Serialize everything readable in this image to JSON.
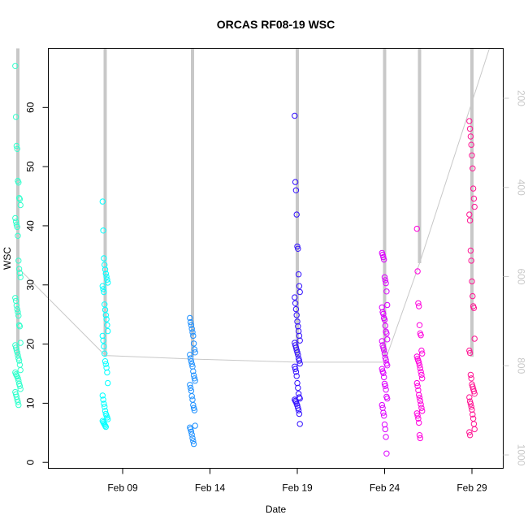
{
  "chart_data": {
    "type": "scatter",
    "title": "ORCAS RF08-19 WSC",
    "xlabel": "Date",
    "ylabel": "WSC",
    "x_ticks": [
      "Feb 09",
      "Feb 14",
      "Feb 19",
      "Feb 24",
      "Feb 29"
    ],
    "y_ticks": [
      0,
      10,
      20,
      30,
      40,
      50,
      60
    ],
    "ylim": [
      -1,
      70
    ],
    "right_axis": {
      "ticks": [
        200,
        400,
        600,
        800,
        1000
      ],
      "range": [
        88,
        1030
      ],
      "reversed": true,
      "color": "#c8c8c8"
    },
    "flights": [
      {
        "date": "2016-02-03",
        "color": "#33ffcc",
        "values": [
          67,
          58.4,
          53.5,
          53,
          47.6,
          47.3,
          44.7,
          44.5,
          43.5,
          41.3,
          40.7,
          40.2,
          39.8,
          38.3,
          34.1,
          32.7,
          32,
          31.3,
          27.8,
          27.3,
          26.5,
          25.9,
          25.4,
          24.8,
          23.2,
          23,
          20.2,
          19.8,
          19.4,
          19,
          18.6,
          18.1,
          17.6,
          17.2,
          16.5,
          15.6,
          15.2,
          14.9,
          14.7,
          14.5,
          14.2,
          13.8,
          13.3,
          12.9,
          12.4,
          11.9,
          11.5,
          11.1,
          10.6,
          10.2,
          9.7
        ]
      },
      {
        "date": "2016-02-08",
        "color": "#00ffff",
        "values": [
          44.1,
          39.2,
          34.5,
          33.4,
          32.6,
          31.9,
          31.4,
          30.9,
          30.4,
          29.8,
          29.3,
          28.8,
          26.7,
          25.8,
          24.9,
          24.2,
          23.2,
          22.2,
          21.4,
          20.6,
          19.6,
          18.4,
          17.1,
          16.6,
          16,
          15.2,
          13.4,
          11.3,
          10.6,
          9.9,
          9.4,
          8.7,
          8.2,
          7.9,
          7.6,
          7.3,
          7,
          6.8,
          6.6,
          6.4,
          6.2,
          6
        ]
      },
      {
        "date": "2016-02-13",
        "color": "#1e90ff",
        "values": [
          24.4,
          23.7,
          23.2,
          22.6,
          22,
          21.4,
          20.1,
          19.1,
          18.6,
          18.2,
          17.6,
          17.1,
          16.6,
          16.2,
          15.4,
          14.7,
          14.2,
          13.8,
          13.1,
          12.6,
          12.1,
          11.2,
          10.6,
          9.7,
          9.2,
          8.8,
          6.2,
          5.9,
          5.6,
          5.2,
          4.7,
          4.1,
          3.6,
          3.1
        ]
      },
      {
        "date": "2016-02-19",
        "color": "#3311ff",
        "values": [
          58.6,
          47.4,
          46,
          41.9,
          36.5,
          36.1,
          31.8,
          29.8,
          28.8,
          27.9,
          26.9,
          25.9,
          24.9,
          23.8,
          23,
          22.2,
          21.4,
          20.6,
          20.2,
          19.8,
          19.4,
          19,
          18.6,
          18.2,
          17.6,
          17.2,
          16.7,
          16.2,
          15.8,
          15.3,
          14.6,
          13.4,
          12.6,
          11.6,
          11,
          10.8,
          10.6,
          10.4,
          10.2,
          9.9,
          9.6,
          9.2,
          8.8,
          8.2,
          6.5
        ]
      },
      {
        "date": "2016-02-24",
        "color": "#dd00ff",
        "values": [
          35.4,
          35.1,
          34.7,
          34.3,
          31.3,
          30.8,
          30.3,
          28.9,
          26.6,
          26.2,
          25.4,
          25.1,
          24.4,
          24.1,
          23.1,
          22.1,
          21.8,
          20.8,
          20.5,
          19.8,
          19.4,
          19,
          18.4,
          17.7,
          17.3,
          16.7,
          16.4,
          15.8,
          15.4,
          15.1,
          14.4,
          13.3,
          12.9,
          12.3,
          11.1,
          10.8,
          9.7,
          9.2,
          8.4,
          7.9,
          6.4,
          5.6,
          4.3,
          1.5
        ]
      },
      {
        "date": "2016-02-26",
        "color": "#ff00dd",
        "values": [
          39.5,
          32.3,
          26.9,
          26.4,
          23.2,
          21.8,
          21.5,
          18.9,
          18.4,
          17.9,
          17.5,
          17.2,
          16.9,
          16.4,
          15.9,
          15.3,
          14.8,
          14.2,
          13.4,
          12.9,
          12.2,
          11.4,
          10.9,
          10.4,
          9.8,
          9.2,
          8.7,
          8.3,
          7.9,
          7.4,
          6.7,
          4.6,
          4.1
        ]
      },
      {
        "date": "2016-02-29",
        "color": "#ff1493",
        "values": [
          57.7,
          56.4,
          55.1,
          53.7,
          51.9,
          49.7,
          46.3,
          44.6,
          43.2,
          41.9,
          40.9,
          35.8,
          34.1,
          30.6,
          28.1,
          26.4,
          26.1,
          20.9,
          18.9,
          18.5,
          14.8,
          14.2,
          13.2,
          12.8,
          12.4,
          12,
          11.6,
          11,
          10.3,
          9.9,
          9.4,
          8.9,
          8.1,
          7.4,
          6.5,
          5.6,
          5.1,
          4.6
        ]
      }
    ],
    "altitude_track": [
      {
        "date": "2016-02-03",
        "alt": 580
      },
      {
        "date": "2016-02-08",
        "alt": 777
      },
      {
        "date": "2016-02-13",
        "alt": 785
      },
      {
        "date": "2016-02-19",
        "alt": 792
      },
      {
        "date": "2016-02-24",
        "alt": 792
      },
      {
        "date": "2016-02-26",
        "alt": 570
      },
      {
        "date": "2016-03-01",
        "alt": 88
      }
    ],
    "grid": false,
    "legend": "none"
  }
}
